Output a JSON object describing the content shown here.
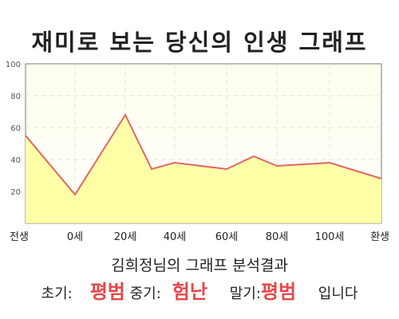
{
  "chart_data": {
    "type": "area",
    "title": "재미로 보는 당신의 인생 그래프",
    "x_labels": [
      "전생",
      "0세",
      "20세",
      "40세",
      "60세",
      "80세",
      "100세",
      "환생"
    ],
    "x": [
      "전생",
      "0세",
      "20세",
      "30세",
      "40세",
      "60세",
      "70세",
      "80세",
      "100세",
      "환생"
    ],
    "values": [
      55,
      18,
      68,
      34,
      38,
      34,
      42,
      36,
      38,
      28
    ],
    "ylim": [
      0,
      100
    ],
    "yticks": [
      20,
      40,
      60,
      80,
      100
    ],
    "grid": true,
    "colors": {
      "line": "#e06666",
      "fill": "#ffffc0"
    }
  },
  "caption": "김희정님의 그래프 분석결과",
  "summary": {
    "early_label": "초기:",
    "early_value": "평범",
    "mid_label": "중기:",
    "mid_value": "험난",
    "late_label": "말기:",
    "late_value": "평범",
    "ending": "입니다"
  }
}
